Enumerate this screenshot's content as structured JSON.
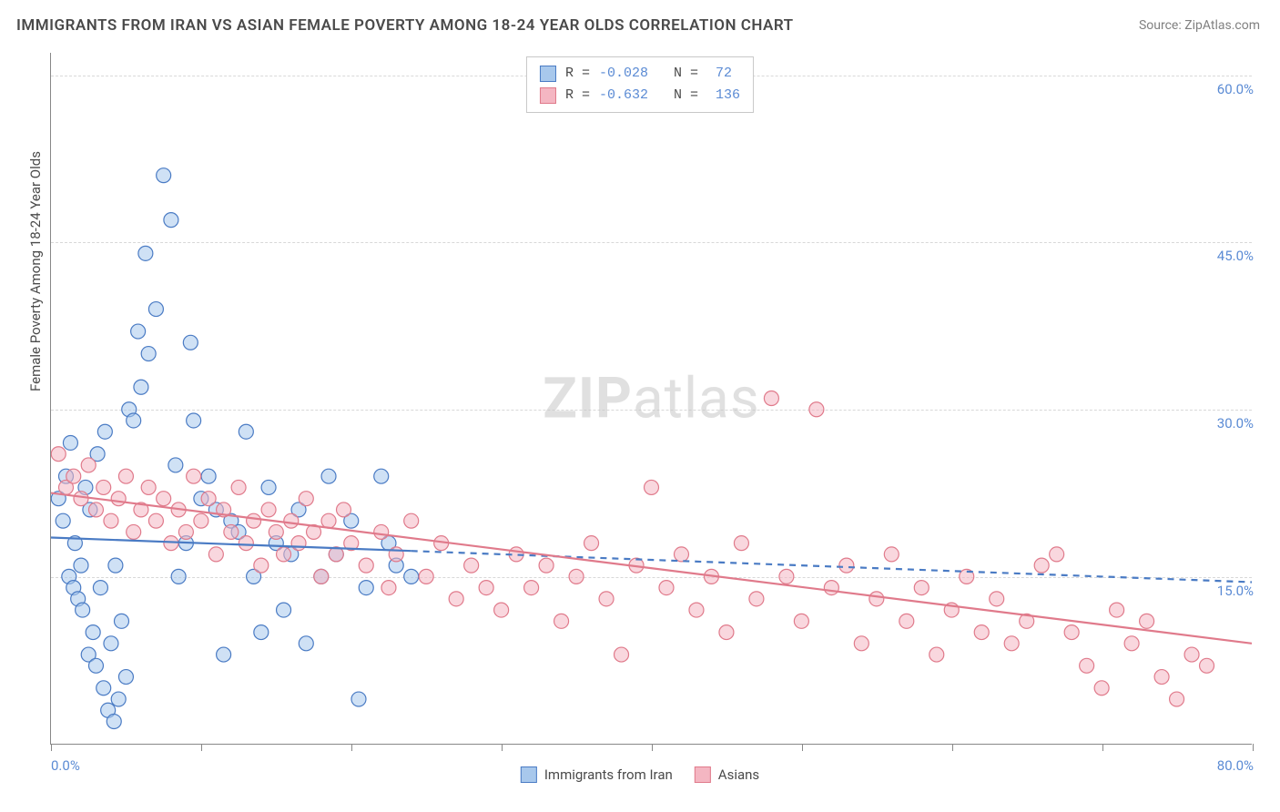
{
  "title": "IMMIGRANTS FROM IRAN VS ASIAN FEMALE POVERTY AMONG 18-24 YEAR OLDS CORRELATION CHART",
  "source": "Source: ZipAtlas.com",
  "watermark_bold": "ZIP",
  "watermark_light": "atlas",
  "y_axis_label": "Female Poverty Among 18-24 Year Olds",
  "chart": {
    "type": "scatter",
    "background_color": "#ffffff",
    "grid_color": "#d8d8d8",
    "axis_color": "#888888",
    "tick_label_color": "#5b8bd4",
    "xlim": [
      0,
      80
    ],
    "ylim": [
      0,
      62
    ],
    "x_ticks": [
      0,
      10,
      20,
      30,
      40,
      50,
      60,
      70,
      80
    ],
    "x_tick_labels": {
      "0": "0.0%",
      "80": "80.0%"
    },
    "y_ticks": [
      15,
      30,
      45,
      60
    ],
    "y_tick_labels": {
      "15": "15.0%",
      "30": "30.0%",
      "45": "45.0%",
      "60": "60.0%"
    },
    "marker_radius": 8,
    "marker_opacity": 0.55,
    "series": [
      {
        "name": "Immigrants from Iran",
        "color_fill": "#a8c8ec",
        "color_stroke": "#4a7bc4",
        "R": "-0.028",
        "N": "72",
        "trend": {
          "x1": 0,
          "y1": 18.5,
          "x2": 80,
          "y2": 14.5,
          "solid_until_x": 24,
          "line_width": 2.2
        },
        "points": [
          [
            0.5,
            22
          ],
          [
            0.8,
            20
          ],
          [
            1.0,
            24
          ],
          [
            1.2,
            15
          ],
          [
            1.3,
            27
          ],
          [
            1.5,
            14
          ],
          [
            1.6,
            18
          ],
          [
            1.8,
            13
          ],
          [
            2.0,
            16
          ],
          [
            2.1,
            12
          ],
          [
            2.3,
            23
          ],
          [
            2.5,
            8
          ],
          [
            2.6,
            21
          ],
          [
            2.8,
            10
          ],
          [
            3.0,
            7
          ],
          [
            3.1,
            26
          ],
          [
            3.3,
            14
          ],
          [
            3.5,
            5
          ],
          [
            3.6,
            28
          ],
          [
            3.8,
            3
          ],
          [
            4.0,
            9
          ],
          [
            4.2,
            2
          ],
          [
            4.3,
            16
          ],
          [
            4.5,
            4
          ],
          [
            4.7,
            11
          ],
          [
            5.0,
            6
          ],
          [
            5.2,
            30
          ],
          [
            5.5,
            29
          ],
          [
            5.8,
            37
          ],
          [
            6.0,
            32
          ],
          [
            6.3,
            44
          ],
          [
            6.5,
            35
          ],
          [
            7.0,
            39
          ],
          [
            7.5,
            51
          ],
          [
            8.0,
            47
          ],
          [
            8.3,
            25
          ],
          [
            8.5,
            15
          ],
          [
            9.0,
            18
          ],
          [
            9.3,
            36
          ],
          [
            9.5,
            29
          ],
          [
            10.0,
            22
          ],
          [
            10.5,
            24
          ],
          [
            11.0,
            21
          ],
          [
            11.5,
            8
          ],
          [
            12.0,
            20
          ],
          [
            12.5,
            19
          ],
          [
            13.0,
            28
          ],
          [
            13.5,
            15
          ],
          [
            14.0,
            10
          ],
          [
            14.5,
            23
          ],
          [
            15.0,
            18
          ],
          [
            15.5,
            12
          ],
          [
            16.0,
            17
          ],
          [
            16.5,
            21
          ],
          [
            17.0,
            9
          ],
          [
            18.0,
            15
          ],
          [
            18.5,
            24
          ],
          [
            19.0,
            17
          ],
          [
            20.0,
            20
          ],
          [
            20.5,
            4
          ],
          [
            21.0,
            14
          ],
          [
            22.0,
            24
          ],
          [
            22.5,
            18
          ],
          [
            23.0,
            16
          ],
          [
            24.0,
            15
          ]
        ]
      },
      {
        "name": "Asians",
        "color_fill": "#f4b6c2",
        "color_stroke": "#e07a8b",
        "R": "-0.632",
        "N": "136",
        "trend": {
          "x1": 0,
          "y1": 22.5,
          "x2": 80,
          "y2": 9.0,
          "solid_until_x": 80,
          "line_width": 2.2
        },
        "points": [
          [
            0.5,
            26
          ],
          [
            1.0,
            23
          ],
          [
            1.5,
            24
          ],
          [
            2.0,
            22
          ],
          [
            2.5,
            25
          ],
          [
            3.0,
            21
          ],
          [
            3.5,
            23
          ],
          [
            4.0,
            20
          ],
          [
            4.5,
            22
          ],
          [
            5.0,
            24
          ],
          [
            5.5,
            19
          ],
          [
            6.0,
            21
          ],
          [
            6.5,
            23
          ],
          [
            7.0,
            20
          ],
          [
            7.5,
            22
          ],
          [
            8.0,
            18
          ],
          [
            8.5,
            21
          ],
          [
            9.0,
            19
          ],
          [
            9.5,
            24
          ],
          [
            10.0,
            20
          ],
          [
            10.5,
            22
          ],
          [
            11.0,
            17
          ],
          [
            11.5,
            21
          ],
          [
            12.0,
            19
          ],
          [
            12.5,
            23
          ],
          [
            13.0,
            18
          ],
          [
            13.5,
            20
          ],
          [
            14.0,
            16
          ],
          [
            14.5,
            21
          ],
          [
            15.0,
            19
          ],
          [
            15.5,
            17
          ],
          [
            16.0,
            20
          ],
          [
            16.5,
            18
          ],
          [
            17.0,
            22
          ],
          [
            17.5,
            19
          ],
          [
            18.0,
            15
          ],
          [
            18.5,
            20
          ],
          [
            19.0,
            17
          ],
          [
            19.5,
            21
          ],
          [
            20.0,
            18
          ],
          [
            21.0,
            16
          ],
          [
            22.0,
            19
          ],
          [
            22.5,
            14
          ],
          [
            23.0,
            17
          ],
          [
            24.0,
            20
          ],
          [
            25.0,
            15
          ],
          [
            26.0,
            18
          ],
          [
            27.0,
            13
          ],
          [
            28.0,
            16
          ],
          [
            29.0,
            14
          ],
          [
            30.0,
            12
          ],
          [
            31.0,
            17
          ],
          [
            32.0,
            14
          ],
          [
            33.0,
            16
          ],
          [
            34.0,
            11
          ],
          [
            35.0,
            15
          ],
          [
            36.0,
            18
          ],
          [
            37.0,
            13
          ],
          [
            38.0,
            8
          ],
          [
            39.0,
            16
          ],
          [
            40.0,
            23
          ],
          [
            41.0,
            14
          ],
          [
            42.0,
            17
          ],
          [
            43.0,
            12
          ],
          [
            44.0,
            15
          ],
          [
            45.0,
            10
          ],
          [
            46.0,
            18
          ],
          [
            47.0,
            13
          ],
          [
            48.0,
            31
          ],
          [
            49.0,
            15
          ],
          [
            50.0,
            11
          ],
          [
            51.0,
            30
          ],
          [
            52.0,
            14
          ],
          [
            53.0,
            16
          ],
          [
            54.0,
            9
          ],
          [
            55.0,
            13
          ],
          [
            56.0,
            17
          ],
          [
            57.0,
            11
          ],
          [
            58.0,
            14
          ],
          [
            59.0,
            8
          ],
          [
            60.0,
            12
          ],
          [
            61.0,
            15
          ],
          [
            62.0,
            10
          ],
          [
            63.0,
            13
          ],
          [
            64.0,
            9
          ],
          [
            65.0,
            11
          ],
          [
            66.0,
            16
          ],
          [
            67.0,
            17
          ],
          [
            68.0,
            10
          ],
          [
            69.0,
            7
          ],
          [
            70.0,
            5
          ],
          [
            71.0,
            12
          ],
          [
            72.0,
            9
          ],
          [
            73.0,
            11
          ],
          [
            74.0,
            6
          ],
          [
            75.0,
            4
          ],
          [
            76.0,
            8
          ],
          [
            77.0,
            7
          ]
        ]
      }
    ]
  },
  "legend_bottom": [
    {
      "swatch_fill": "#a8c8ec",
      "swatch_stroke": "#4a7bc4",
      "label": "Immigrants from Iran"
    },
    {
      "swatch_fill": "#f4b6c2",
      "swatch_stroke": "#e07a8b",
      "label": "Asians"
    }
  ]
}
